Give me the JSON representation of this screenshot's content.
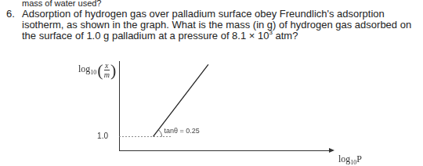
{
  "header": {
    "cut_line": "mass of water used?"
  },
  "question": {
    "number": "6.",
    "lines": [
      "Adsorption of hydrogen gas over palladium surface obey Freundlich's adsorption",
      "isotherm, as shown in the graph. What is the mass (in g) of hydrogen gas adsorbed on"
    ],
    "last_line": {
      "before": "the surface of 1.0 g palladium at a pressure of 8.1 × 10",
      "sup": "3",
      "after": " atm?"
    }
  },
  "chart_data": {
    "type": "line",
    "x_label": {
      "text": "log",
      "sub": "10",
      "after": "P"
    },
    "y_label": {
      "text": "log",
      "sub": "10",
      "num": "x",
      "den": "m"
    },
    "annotation": "tanθ = 0.25",
    "xlim": [
      0,
      16
    ],
    "ylim": [
      0.8,
      2.1
    ],
    "xticks": [],
    "yticks": [
      {
        "value": 1,
        "label": "1.0"
      }
    ],
    "tick_labels": "y",
    "grid": false,
    "series": [
      {
        "x": [
          2.6,
          6.8
        ],
        "values": [
          1.0,
          2.05
        ],
        "color": "#222222",
        "line_style": "solid"
      },
      {
        "x": [
          0,
          4
        ],
        "values": [
          1.0,
          1.0
        ],
        "color": "#888888",
        "line_style": "dotted"
      }
    ]
  }
}
